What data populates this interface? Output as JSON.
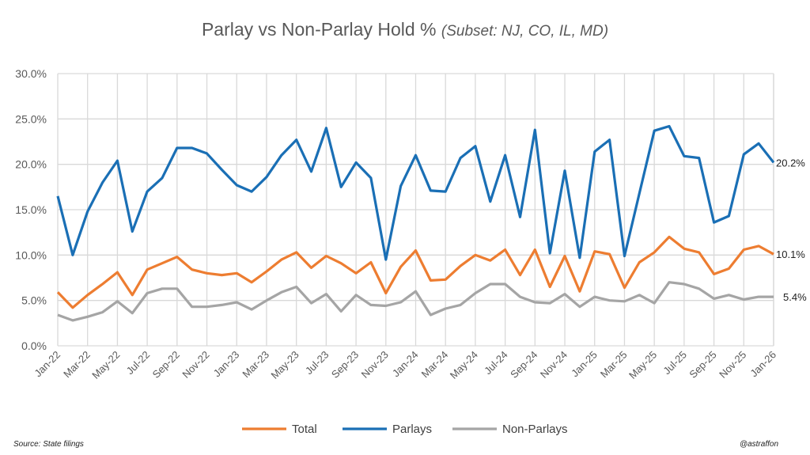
{
  "chart_data": {
    "type": "line",
    "title": "Parlay vs Non-Parlay Hold %",
    "subtitle": "(Subset: NJ, CO, IL, MD)",
    "xlabel": "",
    "ylabel": "",
    "ylim": [
      0,
      30
    ],
    "y_ticks": [
      "0.0%",
      "5.0%",
      "10.0%",
      "15.0%",
      "20.0%",
      "25.0%",
      "30.0%"
    ],
    "grid": true,
    "legend_position": "bottom",
    "x": [
      "Jan-22",
      "Feb-22",
      "Mar-22",
      "Apr-22",
      "May-22",
      "Jun-22",
      "Jul-22",
      "Aug-22",
      "Sep-22",
      "Oct-22",
      "Nov-22",
      "Dec-22",
      "Jan-23",
      "Feb-23",
      "Mar-23",
      "Apr-23",
      "May-23",
      "Jun-23",
      "Jul-23",
      "Aug-23",
      "Sep-23",
      "Oct-23",
      "Nov-23",
      "Dec-23",
      "Jan-24",
      "Feb-24",
      "Mar-24",
      "Apr-24",
      "May-24",
      "Jun-24",
      "Jul-24",
      "Aug-24",
      "Sep-24",
      "Oct-24",
      "Nov-24",
      "Dec-24",
      "Jan-25",
      "Feb-25",
      "Mar-25",
      "Apr-25",
      "May-25",
      "Jun-25",
      "Jul-25",
      "Aug-25",
      "Sep-25",
      "Oct-25",
      "Nov-25",
      "Dec-25",
      "Jan-26"
    ],
    "x_tick_labels": [
      "Jan-22",
      "Mar-22",
      "May-22",
      "Jul-22",
      "Sep-22",
      "Nov-22",
      "Jan-23",
      "Mar-23",
      "May-23",
      "Jul-23",
      "Sep-23",
      "Nov-23",
      "Jan-24",
      "Mar-24",
      "May-24",
      "Jul-24",
      "Sep-24",
      "Nov-24",
      "Jan-25",
      "Mar-25",
      "May-25",
      "Jul-25",
      "Sep-25",
      "Nov-25",
      "Jan-26"
    ],
    "series": [
      {
        "name": "Total",
        "color": "#ED7D31",
        "end_label": "10.1%",
        "values": [
          5.9,
          4.2,
          5.6,
          6.8,
          8.1,
          5.6,
          8.4,
          9.1,
          9.8,
          8.4,
          8.0,
          7.8,
          8.0,
          7.0,
          8.2,
          9.5,
          10.3,
          8.6,
          9.9,
          9.1,
          8.0,
          9.2,
          5.8,
          8.7,
          10.5,
          7.2,
          7.3,
          8.8,
          10.0,
          9.4,
          10.6,
          7.8,
          10.6,
          6.5,
          9.9,
          6.0,
          10.4,
          10.1,
          6.4,
          9.2,
          10.3,
          12.0,
          10.7,
          10.3,
          7.9,
          8.5,
          10.6,
          11.0,
          10.1
        ]
      },
      {
        "name": "Parlays",
        "color": "#1A6FB5",
        "end_label": "20.2%",
        "values": [
          16.5,
          10.0,
          14.8,
          18.0,
          20.4,
          12.6,
          17.0,
          18.5,
          21.8,
          21.8,
          21.2,
          19.4,
          17.7,
          17.0,
          18.6,
          21.0,
          22.7,
          19.2,
          24.0,
          17.5,
          20.2,
          18.5,
          9.5,
          17.6,
          21.0,
          17.1,
          17.0,
          20.7,
          22.0,
          15.9,
          21.0,
          14.2,
          23.8,
          10.2,
          19.3,
          9.7,
          21.4,
          22.7,
          9.9,
          16.8,
          23.7,
          24.2,
          20.9,
          20.7,
          13.6,
          14.3,
          21.1,
          22.3,
          20.2
        ]
      },
      {
        "name": "Non-Parlays",
        "color": "#A5A5A5",
        "end_label": "5.4%",
        "values": [
          3.4,
          2.8,
          3.2,
          3.7,
          4.9,
          3.6,
          5.8,
          6.3,
          6.3,
          4.3,
          4.3,
          4.5,
          4.8,
          4.0,
          5.0,
          5.9,
          6.5,
          4.7,
          5.7,
          3.8,
          5.6,
          4.5,
          4.4,
          4.8,
          6.0,
          3.4,
          4.1,
          4.5,
          5.8,
          6.8,
          6.8,
          5.4,
          4.8,
          4.7,
          5.7,
          4.3,
          5.4,
          5.0,
          4.9,
          5.6,
          4.7,
          7.0,
          6.8,
          6.3,
          5.2,
          5.6,
          5.1,
          5.4,
          5.4
        ]
      }
    ]
  },
  "footer": {
    "source": "Source:  State filings",
    "credit": "@astraffon"
  }
}
